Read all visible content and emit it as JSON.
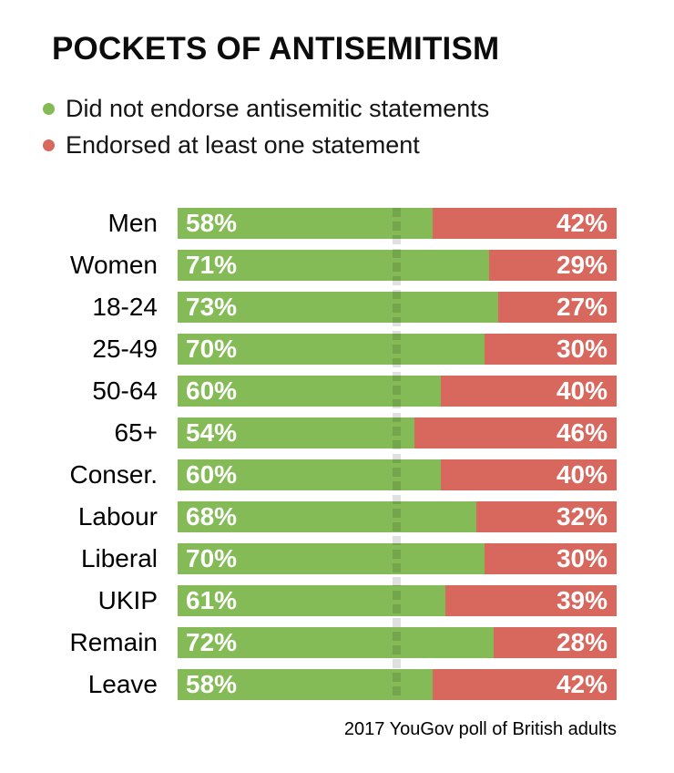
{
  "title": "POCKETS OF ANTISEMITISM",
  "legend": {
    "items": [
      {
        "label": "Did not endorse antisemitic statements",
        "color": "#84bb56"
      },
      {
        "label": "Endorsed at least one statement",
        "color": "#d8675d"
      }
    ]
  },
  "source_note": "2017 YouGov poll of British adults",
  "colors": {
    "green": "#84bb56",
    "red": "#d8675d",
    "dash_overlay": "rgba(0,0,0,0.12)"
  },
  "chart_data": {
    "type": "bar",
    "orientation": "horizontal-stacked",
    "title": "POCKETS OF ANTISEMITISM",
    "categories": [
      "Men",
      "Women",
      "18-24",
      "25-49",
      "50-64",
      "65+",
      "Conser.",
      "Labour",
      "Liberal",
      "UKIP",
      "Remain",
      "Leave"
    ],
    "series": [
      {
        "name": "Did not endorse antisemitic statements",
        "color": "#84bb56",
        "values": [
          58,
          71,
          73,
          70,
          60,
          54,
          60,
          68,
          70,
          61,
          72,
          58
        ]
      },
      {
        "name": "Endorsed at least one statement",
        "color": "#d8675d",
        "values": [
          42,
          29,
          27,
          30,
          40,
          46,
          40,
          32,
          30,
          39,
          28,
          42
        ]
      }
    ],
    "value_suffix": "%",
    "xlim": [
      0,
      100
    ],
    "midline_value": 50,
    "legend_position": "top-left",
    "grid": "none",
    "note": "2017 YouGov poll of British adults"
  }
}
